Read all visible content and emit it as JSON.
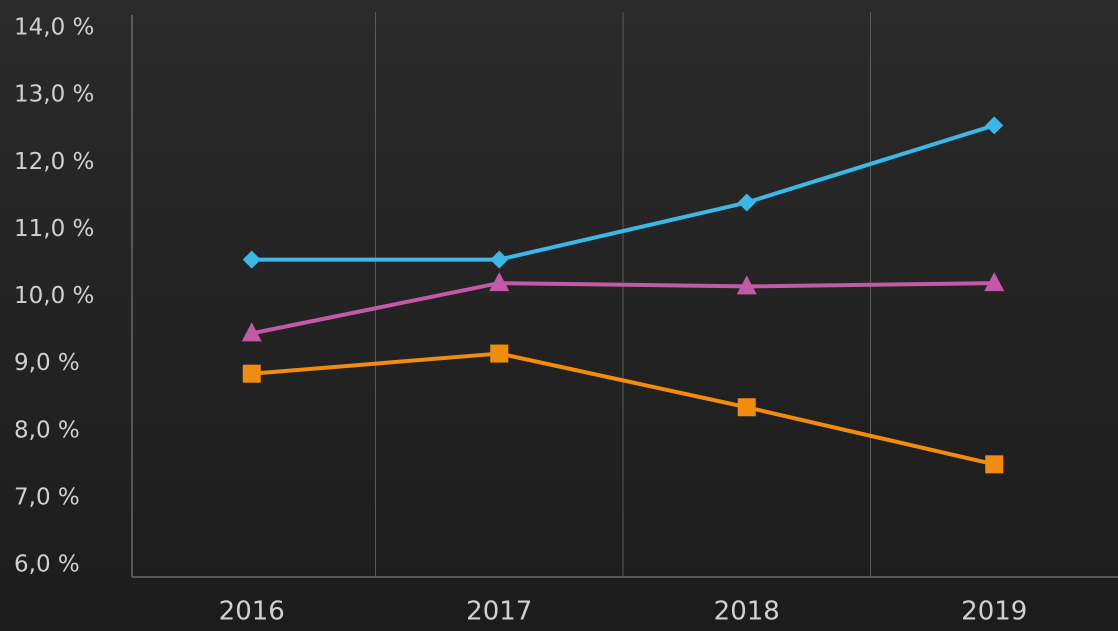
{
  "chart_data": {
    "type": "line",
    "categories": [
      "2016",
      "2017",
      "2018",
      "2019"
    ],
    "series": [
      {
        "color": "#3bb8e6",
        "marker": "diamond",
        "values": [
          10.55,
          10.55,
          11.4,
          12.55
        ]
      },
      {
        "color": "#c25aa8",
        "marker": "triangle",
        "values": [
          9.45,
          10.2,
          10.15,
          10.2
        ]
      },
      {
        "color": "#f28c0f",
        "marker": "square",
        "values": [
          8.85,
          9.15,
          8.35,
          7.5
        ]
      }
    ],
    "ylim": [
      6,
      14
    ],
    "yticks": [
      {
        "value": 6,
        "label": "6,0 %"
      },
      {
        "value": 7,
        "label": "7,0 %"
      },
      {
        "value": 8,
        "label": "8,0 %"
      },
      {
        "value": 9,
        "label": "9,0 %"
      },
      {
        "value": 10,
        "label": "10,0 %"
      },
      {
        "value": 11,
        "label": "11,0 %"
      },
      {
        "value": 12,
        "label": "12,0 %"
      },
      {
        "value": 13,
        "label": "13,0 %"
      },
      {
        "value": 14,
        "label": "14,0 %"
      }
    ],
    "grid": false
  }
}
